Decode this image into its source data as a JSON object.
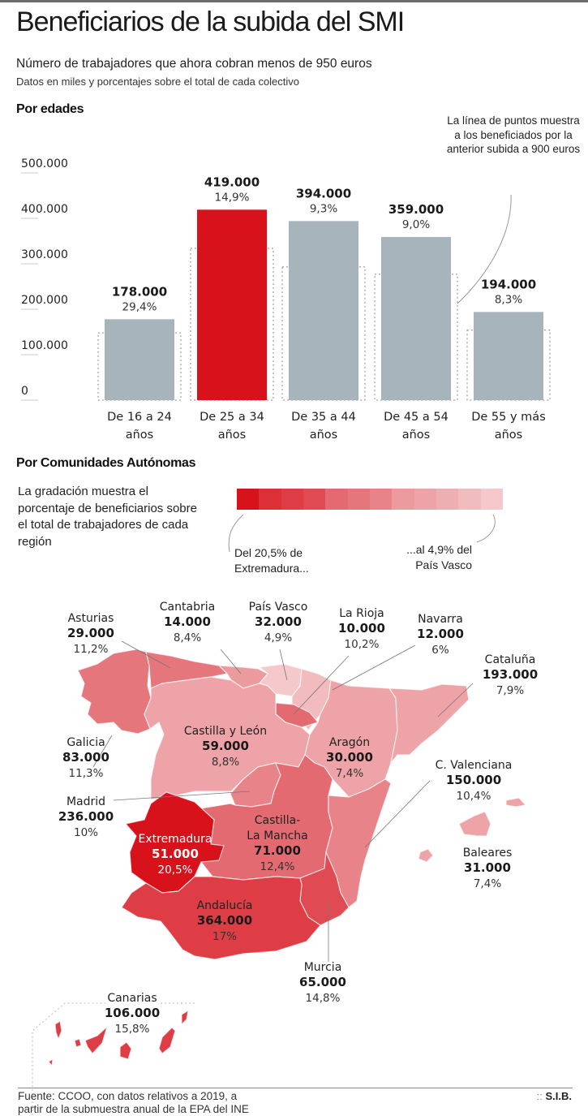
{
  "header": {
    "title": "Beneficiarios de la subida del SMI",
    "subtitle": "Número de trabajadores que ahora cobran menos de 950 euros",
    "subtitle2": "Datos en miles y porcentajes sobre el total de cada colectivo"
  },
  "sections": {
    "ages": "Por edades",
    "regions": "Por Comunidades Autónomas"
  },
  "chart_note": "La línea de puntos muestra a los beneficiados por la anterior subida a 900 euros",
  "chart_data": {
    "type": "bar",
    "title": "Por edades",
    "categories": [
      "De 16 a 24 años",
      "De 25 a 34 años",
      "De 35 a 44 años",
      "De 45 a 54 años",
      "De 55 y más años"
    ],
    "category_lines": [
      [
        "De 16 a 24",
        "años"
      ],
      [
        "De 25 a 34",
        "años"
      ],
      [
        "De 35 a 44",
        "años"
      ],
      [
        "De 45 a 54",
        "años"
      ],
      [
        "De 55 y más",
        "años"
      ]
    ],
    "series": [
      {
        "name": "Beneficiarios subida a 950 euros",
        "values": [
          178000,
          419000,
          394000,
          359000,
          194000
        ]
      },
      {
        "name": "Beneficiarios anterior subida a 900 euros (línea de puntos, estimado)",
        "values": [
          148000,
          334000,
          293000,
          277000,
          154000
        ]
      }
    ],
    "value_labels": [
      "178.000",
      "419.000",
      "394.000",
      "359.000",
      "194.000"
    ],
    "percent_labels": [
      "29,4%",
      "14,9%",
      "9,3%",
      "9,0%",
      "8,3%"
    ],
    "highlight_index": 1,
    "ylim": [
      0,
      500000
    ],
    "yticks": [
      0,
      100000,
      200000,
      300000,
      400000,
      500000
    ],
    "ytick_labels": [
      "0",
      "100.000",
      "200.000",
      "300.000",
      "400.000",
      "500.000"
    ],
    "xlabel": "",
    "ylabel": "",
    "colors": {
      "bar": "#a8b4bc",
      "highlight": "#d7121b",
      "dotted": "#8a8a8a"
    }
  },
  "legend": {
    "description": "La gradación muestra el porcentaje de beneficiarios sobre el total de trabajadores de cada región",
    "left_label_line1": "Del 20,5% de",
    "left_label_line2": "Extremadura...",
    "right_label_line1": "...al 4,9% del",
    "right_label_line2": "País Vasco",
    "scale_colors": [
      "#d7121b",
      "#dc2f37",
      "#de3d45",
      "#e04a52",
      "#e36a71",
      "#e5767c",
      "#e88489",
      "#eb9a9e",
      "#eda3a7",
      "#efaeb2",
      "#f2bbbe",
      "#f5c9cc"
    ]
  },
  "regions": [
    {
      "name": "Asturias",
      "value": "29.000",
      "pct": "11,2%"
    },
    {
      "name": "Cantabria",
      "value": "14.000",
      "pct": "8,4%"
    },
    {
      "name": "País Vasco",
      "value": "32.000",
      "pct": "4,9%"
    },
    {
      "name": "La Rioja",
      "value": "10.000",
      "pct": "10,2%"
    },
    {
      "name": "Navarra",
      "value": "12.000",
      "pct": "6%"
    },
    {
      "name": "Cataluña",
      "value": "193.000",
      "pct": "7,9%"
    },
    {
      "name": "Galicia",
      "value": "83.000",
      "pct": "11,3%"
    },
    {
      "name": "Castilla y León",
      "value": "59.000",
      "pct": "8,8%"
    },
    {
      "name": "Aragón",
      "value": "30.000",
      "pct": "7,4%"
    },
    {
      "name": "C. Valenciana",
      "value": "150.000",
      "pct": "10,4%"
    },
    {
      "name": "Madrid",
      "value": "236.000",
      "pct": "10%"
    },
    {
      "name": "Extremadura",
      "value": "51.000",
      "pct": "20,5%"
    },
    {
      "name": "Castilla-La Mancha",
      "name_line1": "Castilla-",
      "name_line2": "La Mancha",
      "value": "71.000",
      "pct": "12,4%"
    },
    {
      "name": "Baleares",
      "value": "31.000",
      "pct": "7,4%"
    },
    {
      "name": "Andalucía",
      "value": "364.000",
      "pct": "17%"
    },
    {
      "name": "Murcia",
      "value": "65.000",
      "pct": "14,8%"
    },
    {
      "name": "Canarias",
      "value": "106.000",
      "pct": "15,8%"
    }
  ],
  "footer": {
    "source_line1": "Fuente: CCOO, con datos relativos a 2019, a",
    "source_line2": "partir de la submuestra anual de la EPA del INE",
    "credit_prefix": "::",
    "credit": "S.I.B."
  }
}
